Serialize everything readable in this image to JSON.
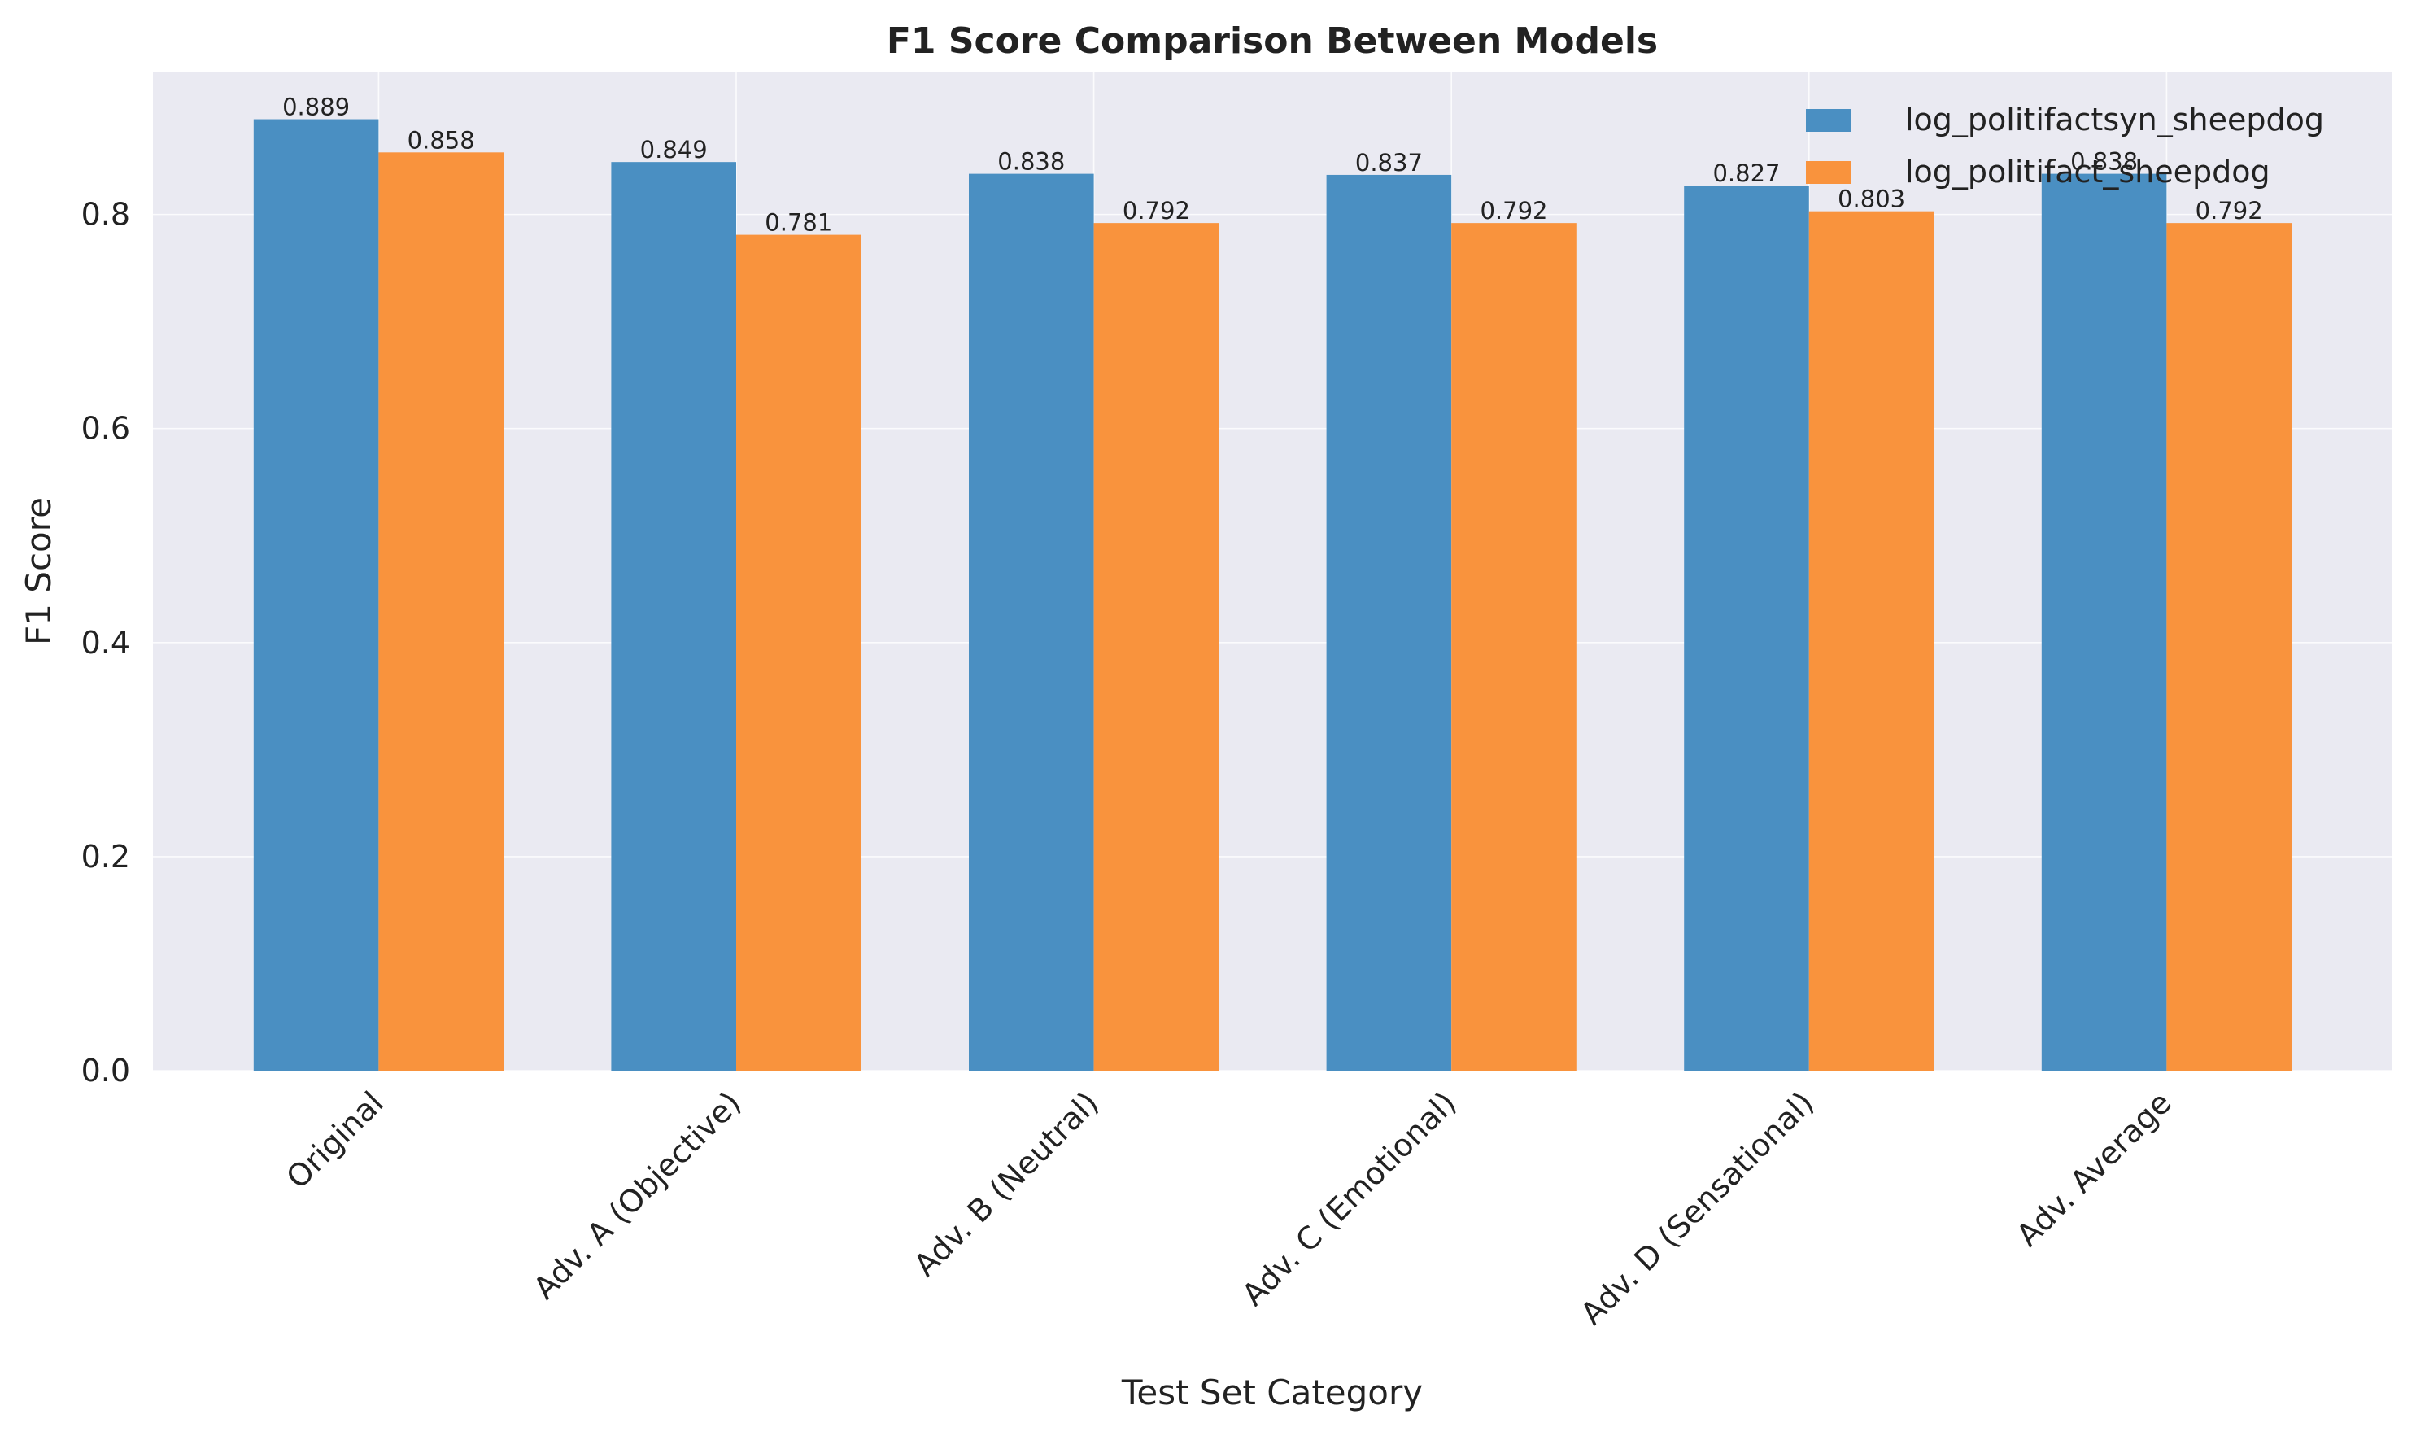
{
  "chart_data": {
    "type": "bar",
    "title": "F1 Score Comparison Between Models",
    "xlabel": "Test Set Category",
    "ylabel": "F1 Score",
    "categories": [
      "Original",
      "Adv. A (Objective)",
      "Adv. B (Neutral)",
      "Adv. C (Emotional)",
      "Adv. D (Sensational)",
      "Adv. Average"
    ],
    "series": [
      {
        "name": "log_politifactsyn_sheepdog",
        "color": "#4a8fc2",
        "values": [
          0.889,
          0.849,
          0.838,
          0.837,
          0.827,
          0.838
        ],
        "labels": [
          "0.889",
          "0.849",
          "0.838",
          "0.837",
          "0.827",
          "0.838"
        ]
      },
      {
        "name": "log_politifact_sheepdog",
        "color": "#f9933d",
        "values": [
          0.858,
          0.781,
          0.792,
          0.792,
          0.803,
          0.792
        ],
        "labels": [
          "0.858",
          "0.781",
          "0.792",
          "0.792",
          "0.803",
          "0.792"
        ]
      }
    ],
    "yticks": [
      0.0,
      0.2,
      0.4,
      0.6,
      0.8
    ],
    "ytick_labels": [
      "0.0",
      "0.2",
      "0.4",
      "0.6",
      "0.8"
    ],
    "ylim": [
      0,
      0.9335
    ],
    "grid": true,
    "legend_position": "top-right",
    "background_color": "#eaeaf2"
  }
}
